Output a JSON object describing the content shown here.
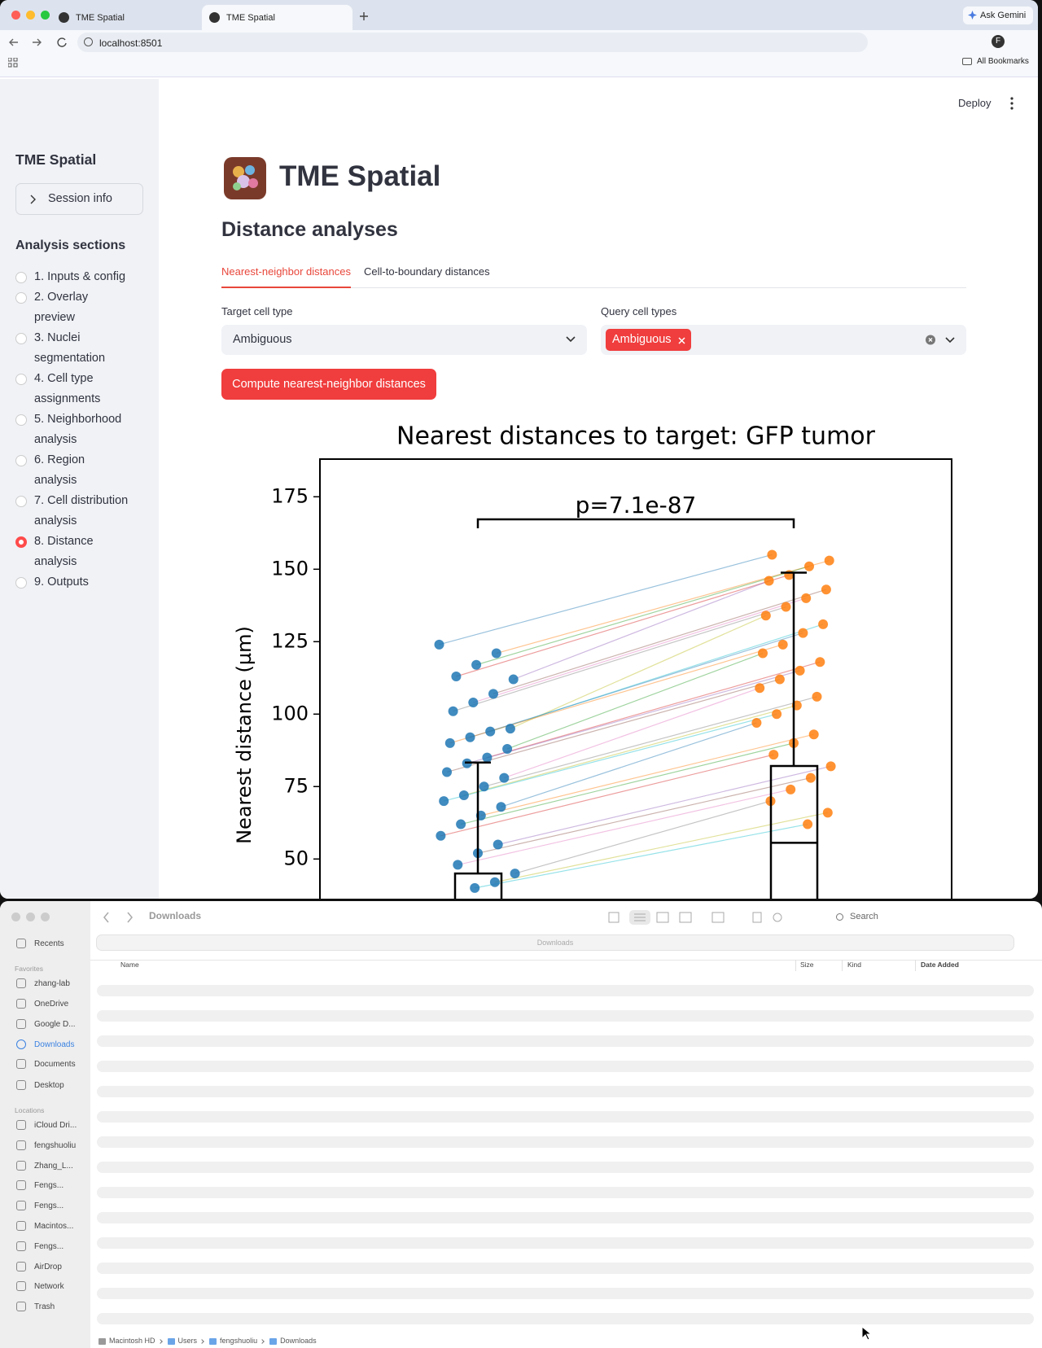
{
  "browser": {
    "tabs": [
      "TME Spatial",
      "TME Spatial"
    ],
    "ask_gemini": "Ask Gemini",
    "url": "localhost:8501",
    "profile": "F",
    "bookmarks": "All Bookmarks"
  },
  "app": {
    "deploy": "Deploy",
    "sidebar": {
      "title": "TME Spatial",
      "session": "Session info",
      "sections_title": "Analysis sections",
      "sections": [
        "1. Inputs & config",
        "2. Overlay preview",
        "3. Nuclei segmentation",
        "4. Cell type assignments",
        "5. Neighborhood analysis",
        "6. Region analysis",
        "7. Cell distribution analysis",
        "8. Distance analysis",
        "9. Outputs"
      ],
      "selected": 7
    },
    "title": "TME Spatial",
    "subtitle": "Distance analyses",
    "tabs": [
      "Nearest-neighbor distances",
      "Cell-to-boundary distances"
    ],
    "active_tab": 0,
    "target_label": "Target cell type",
    "target_value": "Ambiguous",
    "query_label": "Query cell types",
    "query_chips": [
      "Ambiguous"
    ],
    "button": "Compute nearest-neighbor distances"
  },
  "chart_data": {
    "type": "strip-box",
    "title": "Nearest distances to target: GFP tumor",
    "annotation": "p=7.1e-87",
    "ylabel": "Nearest distance (µm)",
    "ylim": [
      0,
      188
    ],
    "yticks": [
      50,
      75,
      100,
      125,
      150,
      175
    ],
    "groups": [
      {
        "color": "#1f77b4",
        "points": [
          124,
          121,
          117,
          113,
          112,
          107,
          104,
          101,
          95,
          94,
          92,
          90,
          88,
          85,
          83,
          80,
          78,
          75,
          72,
          70,
          68,
          65,
          62,
          58,
          55,
          52,
          48,
          45,
          42,
          40
        ],
        "q3": 45,
        "whisker_high": 83.3
      },
      {
        "color": "#ff7f0e",
        "points": [
          155,
          153,
          151,
          148,
          146,
          143,
          140,
          137,
          134,
          131,
          128,
          124,
          121,
          118,
          115,
          112,
          109,
          106,
          103,
          100,
          97,
          93,
          90,
          86,
          82,
          78,
          74,
          70,
          66,
          62
        ],
        "median": 55.6,
        "q3": 82.1,
        "whisker_high": 148.8
      }
    ],
    "line_colors": [
      "#1f77b4",
      "#ff7f0e",
      "#2ca02c",
      "#d62728",
      "#9467bd",
      "#8c564b",
      "#e377c2",
      "#7f7f7f",
      "#bcbd22",
      "#17becf"
    ]
  },
  "finder": {
    "title": "Downloads",
    "search": "Search",
    "path_box": "Downloads",
    "columns": [
      "Name",
      "Size",
      "Kind",
      "Date Added"
    ],
    "favorites_title": "Favorites",
    "favorites": [
      "Recents",
      "zhang-lab",
      "OneDrive",
      "Google D...",
      "Downloads",
      "Documents",
      "Desktop"
    ],
    "selected": 4,
    "locations_title": "Locations",
    "locations": [
      "iCloud Dri...",
      "fengshuoliu",
      "Zhang_L...",
      "Fengs...",
      "Fengs...",
      "Macintos...",
      "Fengs...",
      "AirDrop",
      "Network",
      "Trash"
    ],
    "breadcrumbs": [
      "Macintosh HD",
      "Users",
      "fengshuoliu",
      "Downloads"
    ]
  }
}
